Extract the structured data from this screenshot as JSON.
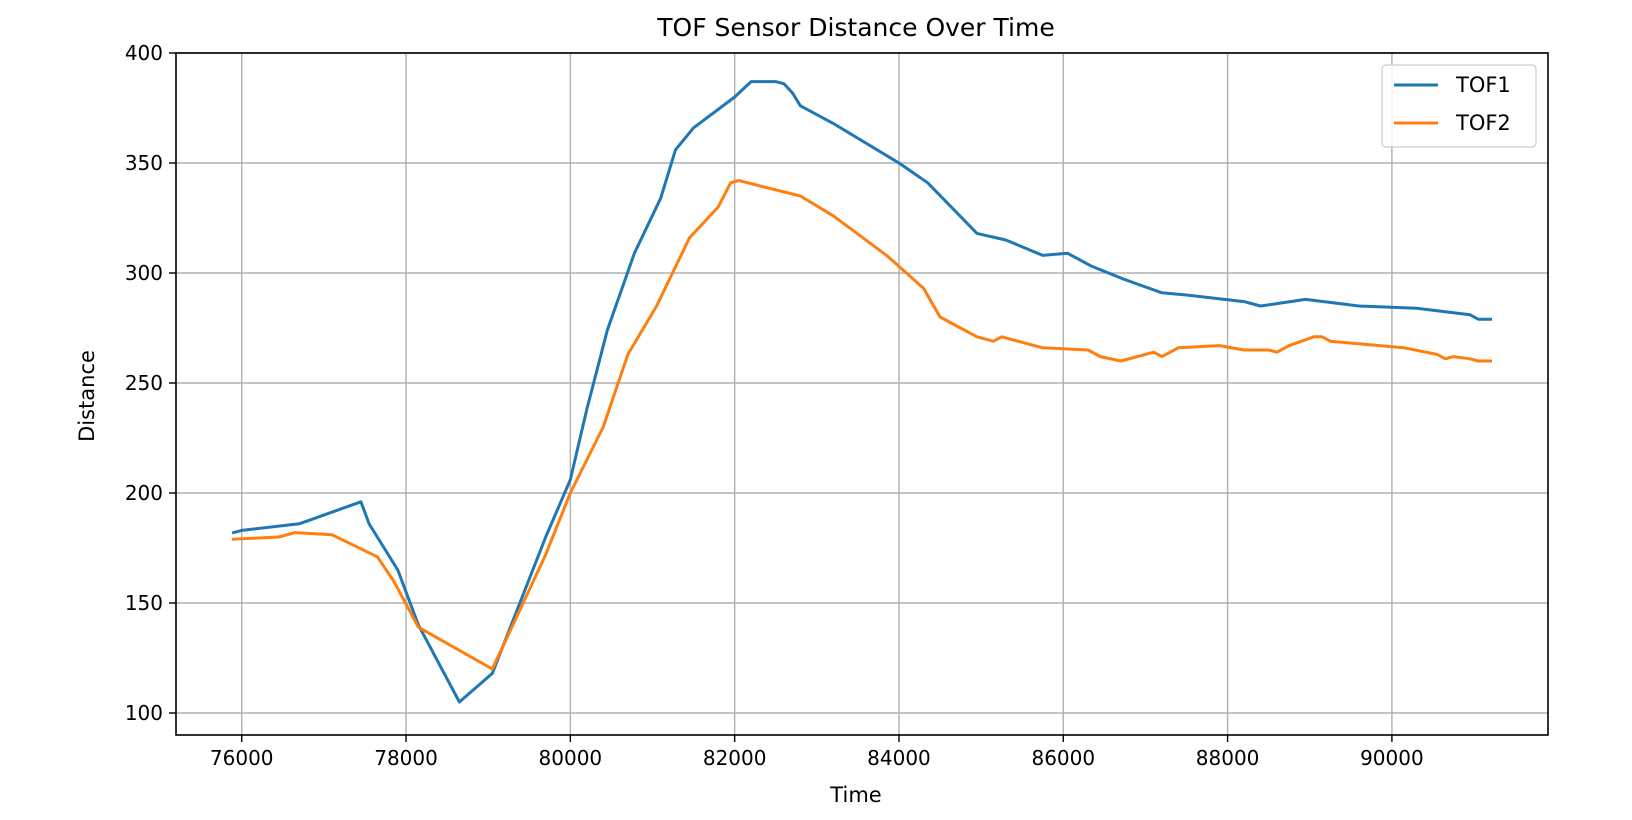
{
  "chart_data": {
    "type": "line",
    "title": "TOF Sensor Distance Over Time",
    "xlabel": "Time",
    "ylabel": "Distance",
    "xlim": [
      75200,
      91900
    ],
    "ylim": [
      90,
      400
    ],
    "xticks": [
      76000,
      78000,
      80000,
      82000,
      84000,
      86000,
      88000,
      90000
    ],
    "yticks": [
      100,
      150,
      200,
      250,
      300,
      350,
      400
    ],
    "grid": true,
    "legend_position": "top-right",
    "series": [
      {
        "name": "TOF1",
        "color": "#1f77b4",
        "points": [
          [
            75900,
            182
          ],
          [
            76000,
            183
          ],
          [
            76700,
            186
          ],
          [
            76850,
            188
          ],
          [
            77450,
            196
          ],
          [
            77550,
            186
          ],
          [
            77900,
            165
          ],
          [
            78150,
            140
          ],
          [
            78650,
            105
          ],
          [
            79050,
            118
          ],
          [
            79700,
            180
          ],
          [
            80000,
            206
          ],
          [
            80200,
            238
          ],
          [
            80450,
            274
          ],
          [
            80780,
            309
          ],
          [
            81100,
            334
          ],
          [
            81280,
            356
          ],
          [
            81500,
            366
          ],
          [
            82000,
            380
          ],
          [
            82200,
            387
          ],
          [
            82500,
            387
          ],
          [
            82600,
            386
          ],
          [
            82700,
            382
          ],
          [
            82800,
            376
          ],
          [
            83200,
            368
          ],
          [
            84000,
            350
          ],
          [
            84350,
            341
          ],
          [
            84950,
            318
          ],
          [
            85300,
            315
          ],
          [
            85750,
            308
          ],
          [
            86050,
            309
          ],
          [
            86350,
            303
          ],
          [
            86750,
            297
          ],
          [
            87200,
            291
          ],
          [
            87500,
            290
          ],
          [
            88200,
            287
          ],
          [
            88400,
            285
          ],
          [
            88950,
            288
          ],
          [
            89600,
            285
          ],
          [
            90300,
            284
          ],
          [
            90950,
            281
          ],
          [
            91050,
            279
          ],
          [
            91200,
            279
          ]
        ]
      },
      {
        "name": "TOF2",
        "color": "#ff7f0e",
        "points": [
          [
            75900,
            179
          ],
          [
            76450,
            180
          ],
          [
            76650,
            182
          ],
          [
            77100,
            181
          ],
          [
            77650,
            171
          ],
          [
            77850,
            160
          ],
          [
            78150,
            139
          ],
          [
            79050,
            120
          ],
          [
            79700,
            172
          ],
          [
            80000,
            200
          ],
          [
            80400,
            230
          ],
          [
            80700,
            263
          ],
          [
            81050,
            285
          ],
          [
            81450,
            316
          ],
          [
            81800,
            330
          ],
          [
            81950,
            341
          ],
          [
            82050,
            342
          ],
          [
            82800,
            335
          ],
          [
            83200,
            326
          ],
          [
            83850,
            308
          ],
          [
            84300,
            293
          ],
          [
            84500,
            280
          ],
          [
            84950,
            271
          ],
          [
            85150,
            269
          ],
          [
            85250,
            271
          ],
          [
            85750,
            266
          ],
          [
            86300,
            265
          ],
          [
            86450,
            262
          ],
          [
            86700,
            260
          ],
          [
            87100,
            264
          ],
          [
            87200,
            262
          ],
          [
            87400,
            266
          ],
          [
            87900,
            267
          ],
          [
            88200,
            265
          ],
          [
            88500,
            265
          ],
          [
            88600,
            264
          ],
          [
            88750,
            267
          ],
          [
            89050,
            271
          ],
          [
            89150,
            271
          ],
          [
            89250,
            269
          ],
          [
            90150,
            266
          ],
          [
            90550,
            263
          ],
          [
            90650,
            261
          ],
          [
            90750,
            262
          ],
          [
            90950,
            261
          ],
          [
            91050,
            260
          ],
          [
            91200,
            260
          ]
        ]
      }
    ]
  }
}
